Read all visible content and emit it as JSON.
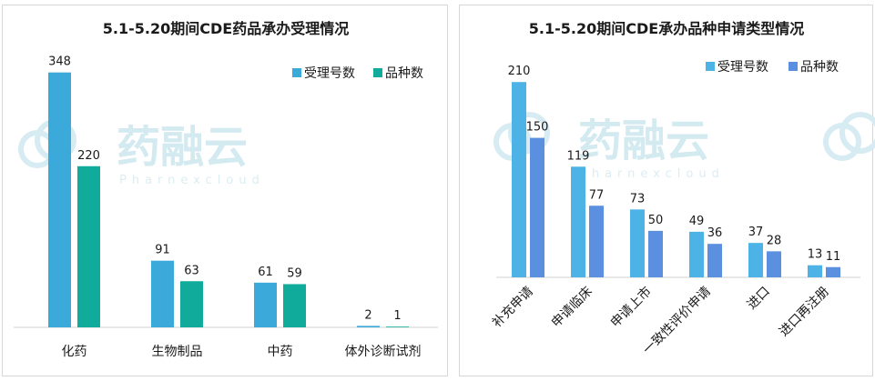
{
  "watermark": {
    "name": "药融云",
    "sub": "Pharnexcloud"
  },
  "chart_data": [
    {
      "type": "bar",
      "title": "5.1-5.20期间CDE药品承办受理情况",
      "categories": [
        "化药",
        "生物制品",
        "中药",
        "体外诊断试剂"
      ],
      "series": [
        {
          "name": "受理号数",
          "values": [
            348,
            91,
            61,
            2
          ],
          "color": "#3ba9d9"
        },
        {
          "name": "品种数",
          "values": [
            220,
            63,
            59,
            1
          ],
          "color": "#10ab9b"
        }
      ],
      "ylim": [
        0,
        360
      ],
      "grid": false,
      "legend": "top-right",
      "xlabel": "",
      "ylabel": ""
    },
    {
      "type": "bar",
      "title": "5.1-5.20期间CDE承办品种申请类型情况",
      "categories": [
        "补充申请",
        "申请临床",
        "申请上市",
        "一致性评价申请",
        "进口",
        "进口再注册"
      ],
      "series": [
        {
          "name": "受理号数",
          "values": [
            210,
            119,
            73,
            49,
            37,
            13
          ],
          "color": "#4db3e6"
        },
        {
          "name": "品种数",
          "values": [
            150,
            77,
            50,
            36,
            28,
            11
          ],
          "color": "#5b8fe0"
        }
      ],
      "ylim": [
        0,
        220
      ],
      "grid": false,
      "legend": "top-right",
      "xlabel": "",
      "ylabel": ""
    }
  ]
}
